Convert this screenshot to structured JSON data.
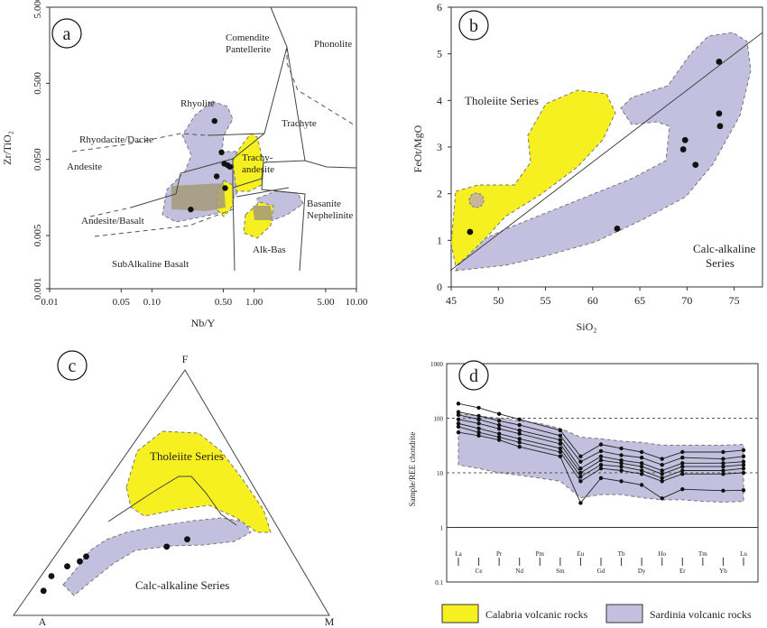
{
  "chart_data": [
    {
      "panel": "a",
      "type": "scatter",
      "x_scale": "log",
      "y_scale": "log",
      "xlabel": "Nb/Y",
      "ylabel": "Zr/TiO₂",
      "xlim": [
        0.01,
        10
      ],
      "ylim": [
        0.001,
        5
      ],
      "x_ticks": [
        "0.01",
        "0.05",
        "0.10",
        "0.50",
        "1.00",
        "5.00",
        "10.00"
      ],
      "y_ticks": [
        "5.000",
        "0.500",
        "0.050",
        "0.005",
        "0.001"
      ],
      "field_labels": [
        "Comendite",
        "Pantellerite",
        "Phonolite",
        "Rhyolite",
        "Trachyte",
        "Rhyodacite/Dacite",
        "Trachy-",
        "andesite",
        "Andesite",
        "Basanite",
        "Nephelinite",
        "Andesite/Basalt",
        "Alk-Bas",
        "SubAlkaline Basalt"
      ],
      "points": [
        [
          0.41,
          0.16
        ],
        [
          0.48,
          0.062
        ],
        [
          0.51,
          0.044
        ],
        [
          0.55,
          0.042
        ],
        [
          0.58,
          0.04
        ],
        [
          0.43,
          0.03
        ],
        [
          0.52,
          0.021
        ],
        [
          0.24,
          0.011
        ]
      ]
    },
    {
      "panel": "b",
      "type": "scatter",
      "xlabel": "SiO₂",
      "ylabel": "FeOt/MgO",
      "xlim": [
        45,
        78
      ],
      "ylim": [
        0,
        6
      ],
      "x_ticks": [
        45,
        50,
        55,
        60,
        65,
        70,
        75
      ],
      "y_ticks": [
        0,
        1,
        2,
        3,
        4,
        5,
        6
      ],
      "annotations": [
        "Tholeiite Series",
        "Calc-alkaline",
        "Series"
      ],
      "points": [
        [
          47,
          1.18
        ],
        [
          62.6,
          1.25
        ],
        [
          69.6,
          2.95
        ],
        [
          69.8,
          3.15
        ],
        [
          70.9,
          2.62
        ],
        [
          73.5,
          3.45
        ],
        [
          73.4,
          3.72
        ],
        [
          73.4,
          4.83
        ]
      ]
    },
    {
      "panel": "c",
      "type": "scatter",
      "apex_labels": [
        "F",
        "A",
        "M"
      ],
      "annotations": [
        "Tholeiite Series",
        "Calc-alkaline Series"
      ],
      "points_normalized": [
        [
          0.095,
          0.1
        ],
        [
          0.12,
          0.16
        ],
        [
          0.17,
          0.2
        ],
        [
          0.21,
          0.22
        ],
        [
          0.23,
          0.24
        ],
        [
          0.485,
          0.28
        ],
        [
          0.55,
          0.31
        ]
      ]
    },
    {
      "panel": "d",
      "type": "line",
      "y_scale": "log",
      "ylabel": "Sample/REE chondrite",
      "ylim": [
        0.1,
        1000
      ],
      "y_ticks": [
        "1000",
        "100",
        "10",
        "1",
        "0.1"
      ],
      "categories": [
        "La",
        "Ce",
        "Pr",
        "Nd",
        "Pm",
        "Sm",
        "Eu",
        "Gd",
        "Tb",
        "Dy",
        "Ho",
        "Er",
        "Tm",
        "Yb",
        "Lu"
      ],
      "tick_labels_top": [
        "La",
        "Pr",
        "Pm",
        "Eu",
        "Tb",
        "Ho",
        "Tm",
        "Lu"
      ],
      "tick_labels_bottom": [
        "Ce",
        "Nd",
        "Sm",
        "Gd",
        "Dy",
        "Er",
        "Yb"
      ],
      "series": [
        {
          "values": [
            185,
            155,
            120,
            95,
            null,
            60,
            20,
            33,
            28,
            24,
            18,
            24,
            null,
            24,
            26
          ]
        },
        {
          "values": [
            130,
            110,
            90,
            75,
            null,
            48,
            16,
            25,
            21,
            19,
            14,
            19,
            null,
            18,
            20
          ]
        },
        {
          "values": [
            115,
            95,
            75,
            60,
            null,
            40,
            12,
            20,
            17,
            15,
            11,
            15,
            null,
            15,
            16
          ]
        },
        {
          "values": [
            95,
            80,
            64,
            52,
            null,
            34,
            10,
            17,
            15,
            13,
            9.5,
            13,
            null,
            13,
            14
          ]
        },
        {
          "values": [
            80,
            65,
            52,
            42,
            null,
            28,
            8.5,
            14,
            13,
            11,
            8,
            11,
            null,
            11,
            12
          ]
        },
        {
          "values": [
            70,
            55,
            45,
            36,
            null,
            24,
            7,
            12,
            11,
            9.5,
            7,
            9.5,
            null,
            9.5,
            10
          ]
        },
        {
          "values": [
            55,
            48,
            40,
            30,
            null,
            20,
            2.8,
            8,
            7,
            6,
            3.4,
            5,
            null,
            4.7,
            4.8
          ]
        }
      ],
      "reference_lines": [
        100,
        10
      ],
      "legend": {
        "placement": "bottom",
        "items": [
          {
            "label": "Calabria volcanic rocks",
            "color": "#f7f020"
          },
          {
            "label": "Sardinia volcanic rocks",
            "color": "#c2c0de"
          }
        ]
      }
    }
  ]
}
